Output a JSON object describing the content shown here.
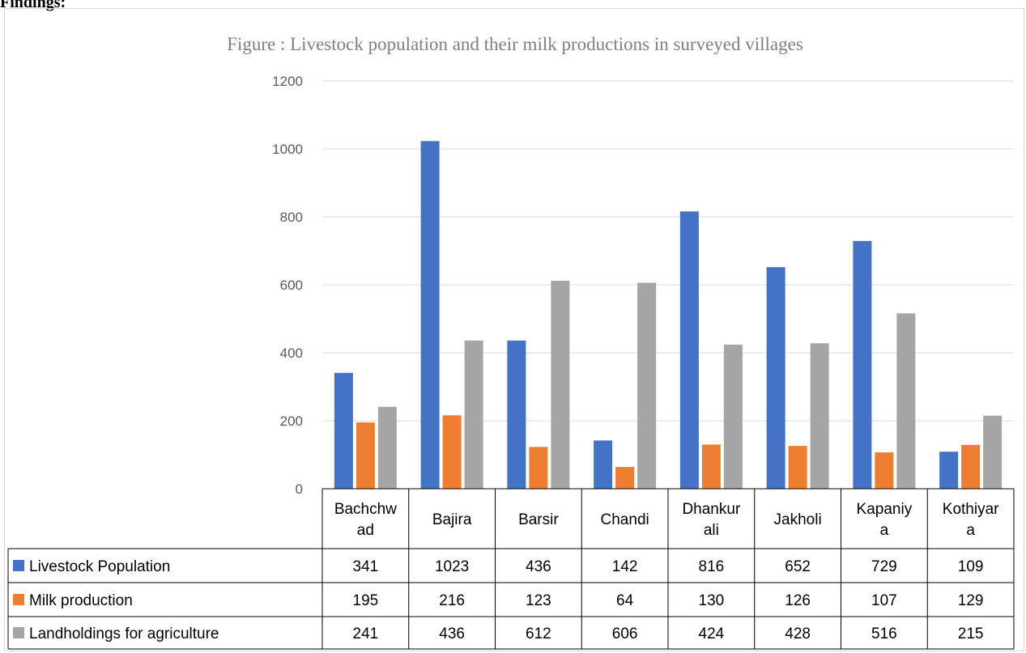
{
  "heading": "Findings:",
  "chart_data": {
    "type": "bar",
    "title": "Figure : Livestock population and their milk productions in surveyed villages",
    "xlabel": "",
    "ylabel": "",
    "ylim": [
      0,
      1200
    ],
    "yticks": [
      0,
      200,
      400,
      600,
      800,
      1000,
      1200
    ],
    "grid": true,
    "legend": "data-table",
    "category_label_lines": [
      [
        "Bachchw",
        "ad"
      ],
      [
        "Bajira"
      ],
      [
        "Barsir"
      ],
      [
        "Chandi"
      ],
      [
        "Dhankur",
        "ali"
      ],
      [
        "Jakholi"
      ],
      [
        "Kapaniy",
        "a"
      ],
      [
        "Kothiyar",
        "a"
      ]
    ],
    "categories": [
      "Bachchwad",
      "Bajira",
      "Barsir",
      "Chandi",
      "Dhankurali",
      "Jakholi",
      "Kapaniya",
      "Kothiyara"
    ],
    "series": [
      {
        "name": "Livestock Population",
        "color": "#4472c4",
        "values": [
          341,
          1023,
          436,
          142,
          816,
          652,
          729,
          109
        ]
      },
      {
        "name": "Milk production",
        "color": "#ed7d31",
        "values": [
          195,
          216,
          123,
          64,
          130,
          126,
          107,
          129
        ]
      },
      {
        "name": "Landholdings for agriculture",
        "color": "#a5a5a5",
        "values": [
          241,
          436,
          612,
          606,
          424,
          428,
          516,
          215
        ]
      }
    ]
  }
}
